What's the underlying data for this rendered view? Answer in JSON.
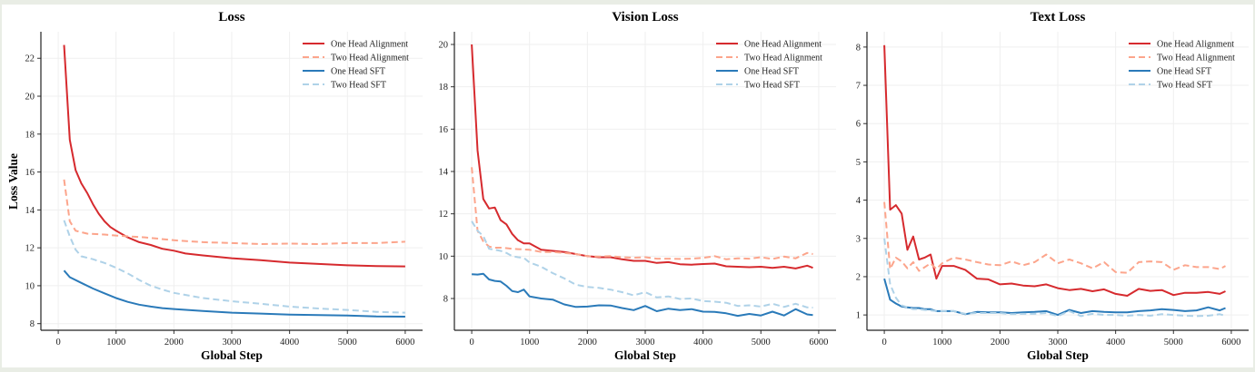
{
  "colors": {
    "one_head_alignment": "#d62a2e",
    "two_head_alignment": "#fca58c",
    "one_head_sft": "#2a7ab9",
    "two_head_sft": "#afd2e8"
  },
  "chart_data": [
    {
      "type": "line",
      "title": "Loss",
      "xlabel": "Global Step",
      "ylabel": "Loss Value",
      "xlim": [
        -300,
        6300
      ],
      "ylim": [
        7.65,
        23.4
      ],
      "xticks": [
        "0",
        "1000",
        "2000",
        "3000",
        "4000",
        "5000",
        "6000"
      ],
      "yticks": [
        "8",
        "10",
        "12",
        "14",
        "16",
        "18",
        "20",
        "22"
      ],
      "grid": true,
      "legend": "top-right",
      "series": [
        {
          "name": "One Head Alignment",
          "style": "solid",
          "color": "#d62a2e",
          "x": [
            100,
            200,
            300,
            400,
            500,
            600,
            700,
            800,
            900,
            1000,
            1200,
            1400,
            1600,
            1800,
            2000,
            2200,
            2500,
            3000,
            3500,
            4000,
            4500,
            5000,
            5500,
            6000
          ],
          "y": [
            22.7,
            17.7,
            16.1,
            15.4,
            14.9,
            14.3,
            13.8,
            13.4,
            13.1,
            12.9,
            12.55,
            12.3,
            12.15,
            11.95,
            11.85,
            11.7,
            11.6,
            11.45,
            11.35,
            11.22,
            11.15,
            11.08,
            11.04,
            11.02
          ]
        },
        {
          "name": "Two Head Alignment",
          "style": "dashed",
          "color": "#fca58c",
          "x": [
            100,
            200,
            300,
            500,
            800,
            1000,
            1500,
            2000,
            2500,
            3000,
            3500,
            4000,
            4500,
            5000,
            5500,
            6000
          ],
          "y": [
            15.6,
            13.4,
            12.9,
            12.75,
            12.7,
            12.65,
            12.55,
            12.4,
            12.3,
            12.25,
            12.2,
            12.22,
            12.2,
            12.25,
            12.25,
            12.32
          ]
        },
        {
          "name": "One Head SFT",
          "style": "solid",
          "color": "#2a7ab9",
          "x": [
            100,
            200,
            400,
            600,
            800,
            1000,
            1200,
            1400,
            1600,
            1800,
            2000,
            2500,
            3000,
            3500,
            4000,
            4500,
            5000,
            5500,
            6000
          ],
          "y": [
            10.8,
            10.45,
            10.15,
            9.85,
            9.6,
            9.35,
            9.15,
            9.0,
            8.9,
            8.82,
            8.77,
            8.67,
            8.58,
            8.53,
            8.48,
            8.45,
            8.43,
            8.38,
            8.37
          ]
        },
        {
          "name": "Two Head SFT",
          "style": "dashed",
          "color": "#afd2e8",
          "x": [
            100,
            200,
            300,
            400,
            600,
            800,
            1000,
            1200,
            1400,
            1600,
            1800,
            2000,
            2500,
            3000,
            3500,
            4000,
            4500,
            5000,
            5500,
            6000
          ],
          "y": [
            13.45,
            12.6,
            11.9,
            11.55,
            11.4,
            11.2,
            10.95,
            10.65,
            10.3,
            10.0,
            9.8,
            9.62,
            9.35,
            9.18,
            9.05,
            8.9,
            8.8,
            8.72,
            8.62,
            8.58
          ]
        }
      ]
    },
    {
      "type": "line",
      "title": "Vision Loss",
      "xlabel": "Global Step",
      "ylabel": "",
      "xlim": [
        -300,
        6300
      ],
      "ylim": [
        6.5,
        20.6
      ],
      "xticks": [
        "0",
        "1000",
        "2000",
        "3000",
        "4000",
        "5000",
        "6000"
      ],
      "yticks": [
        "8",
        "10",
        "12",
        "14",
        "16",
        "18",
        "20"
      ],
      "grid": true,
      "legend": "top-right",
      "x": [
        0,
        100,
        200,
        300,
        400,
        500,
        600,
        700,
        800,
        900,
        1000,
        1200,
        1400,
        1600,
        1800,
        2000,
        2200,
        2400,
        2600,
        2800,
        3000,
        3200,
        3400,
        3600,
        3800,
        4000,
        4200,
        4400,
        4600,
        4800,
        5000,
        5200,
        5400,
        5600,
        5800,
        5900
      ],
      "series": [
        {
          "name": "One Head Alignment",
          "style": "solid",
          "color": "#d62a2e",
          "y": [
            20,
            15,
            12.7,
            12.25,
            12.3,
            11.7,
            11.5,
            11.05,
            10.75,
            10.6,
            10.6,
            10.3,
            10.25,
            10.2,
            10.1,
            10.0,
            9.95,
            9.95,
            9.85,
            9.78,
            9.78,
            9.68,
            9.72,
            9.62,
            9.6,
            9.63,
            9.65,
            9.52,
            9.5,
            9.48,
            9.5,
            9.45,
            9.5,
            9.42,
            9.55,
            9.45
          ]
        },
        {
          "name": "Two Head Alignment",
          "style": "dashed",
          "color": "#fca58c",
          "y": [
            14.2,
            11.2,
            10.7,
            10.45,
            10.4,
            10.4,
            10.38,
            10.35,
            10.33,
            10.32,
            10.3,
            10.2,
            10.2,
            10.15,
            10.1,
            10.0,
            9.98,
            10.0,
            9.95,
            9.93,
            9.95,
            9.88,
            9.88,
            9.87,
            9.88,
            9.92,
            10.0,
            9.85,
            9.9,
            9.88,
            9.95,
            9.87,
            9.98,
            9.9,
            10.15,
            10.1
          ]
        },
        {
          "name": "One Head SFT",
          "style": "solid",
          "color": "#2a7ab9",
          "y": [
            9.15,
            9.13,
            9.17,
            8.9,
            8.83,
            8.8,
            8.6,
            8.35,
            8.3,
            8.42,
            8.1,
            8.0,
            7.95,
            7.72,
            7.6,
            7.62,
            7.68,
            7.67,
            7.55,
            7.45,
            7.65,
            7.4,
            7.52,
            7.45,
            7.5,
            7.38,
            7.37,
            7.3,
            7.18,
            7.27,
            7.2,
            7.38,
            7.2,
            7.5,
            7.25,
            7.22
          ]
        },
        {
          "name": "Two Head SFT",
          "style": "dashed",
          "color": "#afd2e8",
          "y": [
            11.65,
            11.2,
            10.95,
            10.35,
            10.3,
            10.25,
            10.15,
            10.0,
            9.95,
            9.92,
            9.7,
            9.5,
            9.2,
            8.95,
            8.65,
            8.55,
            8.5,
            8.42,
            8.3,
            8.15,
            8.3,
            8.05,
            8.1,
            7.98,
            8.0,
            7.88,
            7.85,
            7.8,
            7.65,
            7.68,
            7.62,
            7.75,
            7.6,
            7.75,
            7.58,
            7.57
          ]
        }
      ]
    },
    {
      "type": "line",
      "title": "Text Loss",
      "xlabel": "Global Step",
      "ylabel": "",
      "xlim": [
        -300,
        6300
      ],
      "ylim": [
        0.6,
        8.4
      ],
      "xticks": [
        "0",
        "1000",
        "2000",
        "3000",
        "4000",
        "5000",
        "6000"
      ],
      "yticks": [
        "1",
        "2",
        "3",
        "4",
        "5",
        "6",
        "7",
        "8"
      ],
      "grid": true,
      "legend": "top-right",
      "x": [
        0,
        100,
        200,
        300,
        400,
        500,
        600,
        700,
        800,
        900,
        1000,
        1200,
        1400,
        1600,
        1800,
        2000,
        2200,
        2400,
        2600,
        2800,
        3000,
        3200,
        3400,
        3600,
        3800,
        4000,
        4200,
        4400,
        4600,
        4800,
        5000,
        5200,
        5400,
        5600,
        5800,
        5900
      ],
      "series": [
        {
          "name": "One Head Alignment",
          "style": "solid",
          "color": "#d62a2e",
          "y": [
            8.05,
            3.75,
            3.87,
            3.65,
            2.7,
            3.05,
            2.45,
            2.5,
            2.58,
            1.95,
            2.28,
            2.28,
            2.18,
            1.95,
            1.93,
            1.8,
            1.82,
            1.77,
            1.75,
            1.8,
            1.7,
            1.65,
            1.68,
            1.62,
            1.67,
            1.55,
            1.5,
            1.68,
            1.63,
            1.65,
            1.52,
            1.58,
            1.58,
            1.6,
            1.55,
            1.62
          ]
        },
        {
          "name": "Two Head Alignment",
          "style": "dashed",
          "color": "#fca58c",
          "y": [
            3.95,
            2.2,
            2.5,
            2.4,
            2.22,
            2.38,
            2.15,
            2.25,
            2.35,
            2.2,
            2.35,
            2.5,
            2.45,
            2.38,
            2.32,
            2.3,
            2.4,
            2.3,
            2.38,
            2.58,
            2.35,
            2.45,
            2.35,
            2.22,
            2.38,
            2.12,
            2.1,
            2.38,
            2.4,
            2.38,
            2.18,
            2.3,
            2.25,
            2.25,
            2.2,
            2.28
          ]
        },
        {
          "name": "One Head SFT",
          "style": "solid",
          "color": "#2a7ab9",
          "y": [
            1.95,
            1.4,
            1.3,
            1.22,
            1.2,
            1.18,
            1.18,
            1.15,
            1.15,
            1.1,
            1.1,
            1.1,
            1.02,
            1.08,
            1.07,
            1.07,
            1.05,
            1.07,
            1.08,
            1.1,
            1.0,
            1.13,
            1.05,
            1.1,
            1.08,
            1.07,
            1.07,
            1.1,
            1.12,
            1.15,
            1.13,
            1.1,
            1.12,
            1.2,
            1.12,
            1.18
          ]
        },
        {
          "name": "Two Head SFT",
          "style": "dashed",
          "color": "#afd2e8",
          "y": [
            3.0,
            1.8,
            1.45,
            1.25,
            1.2,
            1.15,
            1.15,
            1.13,
            1.12,
            1.1,
            1.1,
            1.1,
            1.03,
            1.05,
            1.05,
            1.05,
            1.02,
            1.03,
            1.03,
            1.05,
            0.97,
            1.1,
            0.97,
            1.03,
            1.0,
            1.0,
            0.98,
            1.0,
            0.98,
            1.02,
            1.0,
            0.98,
            0.97,
            0.98,
            1.02,
            0.98
          ]
        }
      ]
    }
  ]
}
